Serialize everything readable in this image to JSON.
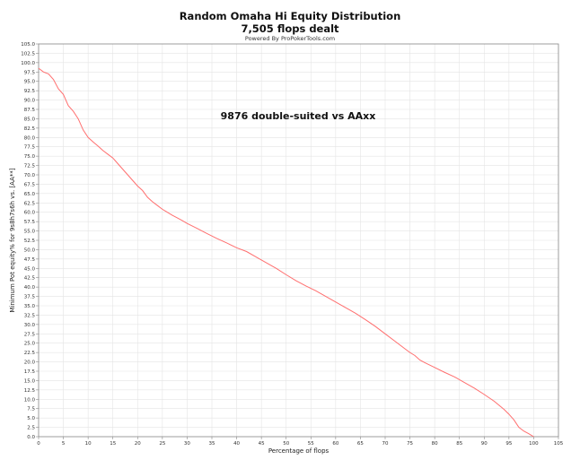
{
  "header": {
    "title": "Random Omaha Hi Equity Distribution",
    "subtitle": "7,505 flops dealt",
    "credit": "Powered By ProPokerTools.com"
  },
  "chart_data": {
    "type": "line",
    "title": "Random Omaha Hi Equity Distribution",
    "subtitle": "7,505 flops dealt",
    "xlabel": "Percentage of flops",
    "ylabel": "Minimum Pot equity% for 9s8h7s6h vs. [AA**]",
    "annotation": "9876 double-suited vs AAxx",
    "xlim": [
      0,
      105
    ],
    "ylim": [
      0,
      105
    ],
    "x_ticks": [
      "0",
      "5",
      "10",
      "15",
      "20",
      "25",
      "30",
      "35",
      "40",
      "45",
      "50",
      "55",
      "60",
      "65",
      "70",
      "75",
      "80",
      "85",
      "90",
      "95",
      "100",
      "105"
    ],
    "y_ticks": [
      "0.0",
      "2.5",
      "5.0",
      "7.5",
      "10.0",
      "12.5",
      "15.0",
      "17.5",
      "20.0",
      "22.5",
      "25.0",
      "27.5",
      "30.0",
      "32.5",
      "35.0",
      "37.5",
      "40.0",
      "42.5",
      "45.0",
      "47.5",
      "50.0",
      "52.5",
      "55.0",
      "57.5",
      "60.0",
      "62.5",
      "65.0",
      "67.5",
      "70.0",
      "72.5",
      "75.0",
      "77.5",
      "80.0",
      "82.5",
      "85.0",
      "87.5",
      "90.0",
      "92.5",
      "95.0",
      "97.5",
      "100.0",
      "102.5",
      "105.0"
    ],
    "grid": true,
    "series": [
      {
        "color": "#ff6f6f",
        "points": [
          [
            0,
            98.5
          ],
          [
            1,
            97.5
          ],
          [
            2,
            97.0
          ],
          [
            3,
            95.5
          ],
          [
            4,
            93.0
          ],
          [
            5,
            91.5
          ],
          [
            6,
            88.5
          ],
          [
            7,
            87.0
          ],
          [
            8,
            85.0
          ],
          [
            9,
            82.0
          ],
          [
            10,
            80.0
          ],
          [
            11,
            78.8
          ],
          [
            12,
            77.7
          ],
          [
            13,
            76.5
          ],
          [
            14,
            75.5
          ],
          [
            15,
            74.5
          ],
          [
            16,
            73.0
          ],
          [
            17,
            71.5
          ],
          [
            18,
            70.0
          ],
          [
            19,
            68.5
          ],
          [
            20,
            67.0
          ],
          [
            21,
            65.8
          ],
          [
            22,
            64.0
          ],
          [
            23,
            62.8
          ],
          [
            24,
            61.8
          ],
          [
            25,
            60.8
          ],
          [
            26,
            60.0
          ],
          [
            27,
            59.2
          ],
          [
            28,
            58.5
          ],
          [
            29,
            57.8
          ],
          [
            30,
            57.0
          ],
          [
            32,
            55.7
          ],
          [
            34,
            54.3
          ],
          [
            36,
            53.0
          ],
          [
            38,
            51.8
          ],
          [
            40,
            50.5
          ],
          [
            42,
            49.5
          ],
          [
            44,
            48.0
          ],
          [
            46,
            46.5
          ],
          [
            48,
            45.0
          ],
          [
            50,
            43.3
          ],
          [
            52,
            41.7
          ],
          [
            54,
            40.3
          ],
          [
            56,
            39.0
          ],
          [
            58,
            37.5
          ],
          [
            60,
            36.0
          ],
          [
            62,
            34.5
          ],
          [
            64,
            33.0
          ],
          [
            66,
            31.3
          ],
          [
            68,
            29.5
          ],
          [
            70,
            27.5
          ],
          [
            72,
            25.5
          ],
          [
            74,
            23.5
          ],
          [
            75,
            22.5
          ],
          [
            76,
            21.7
          ],
          [
            77,
            20.5
          ],
          [
            78,
            19.8
          ],
          [
            80,
            18.5
          ],
          [
            82,
            17.2
          ],
          [
            84,
            16.0
          ],
          [
            86,
            14.5
          ],
          [
            88,
            13.0
          ],
          [
            90,
            11.3
          ],
          [
            92,
            9.5
          ],
          [
            94,
            7.3
          ],
          [
            95,
            6.0
          ],
          [
            96,
            4.5
          ],
          [
            97,
            2.5
          ],
          [
            98,
            1.5
          ],
          [
            99,
            0.8
          ],
          [
            100,
            0.0
          ]
        ]
      }
    ]
  }
}
